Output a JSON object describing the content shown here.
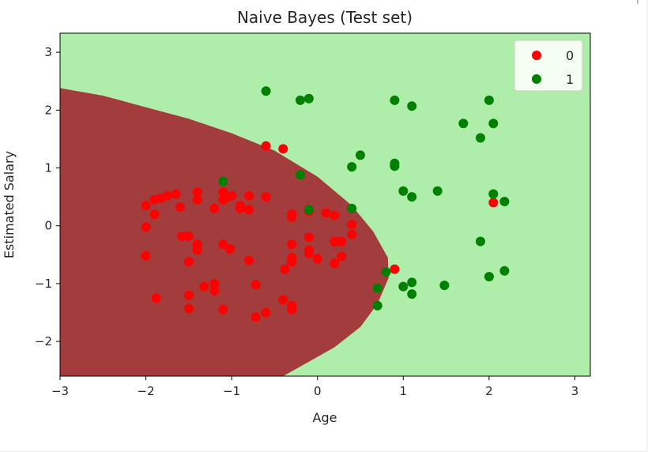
{
  "chart_data": {
    "type": "scatter",
    "title": "Naive Bayes (Test set)",
    "xlabel": "Age",
    "ylabel": "Estimated Salary",
    "xlim": [
      -3,
      3.18
    ],
    "ylim": [
      -2.6,
      3.33
    ],
    "x_ticks": [
      -3,
      -2,
      -1,
      0,
      1,
      2,
      3
    ],
    "y_ticks": [
      -2,
      -1,
      0,
      1,
      2,
      3
    ],
    "x_tick_labels": [
      "−3",
      "−2",
      "−1",
      "0",
      "1",
      "2",
      "3"
    ],
    "y_tick_labels": [
      "−2",
      "−1",
      "0",
      "1",
      "2",
      "3"
    ],
    "grid": false,
    "legend_position": "top-right",
    "background_regions": {
      "class_0_color": "#a33d3d",
      "class_1_color": "#aeeeaa",
      "class_0_region_boundary": [
        [
          -3,
          2.38
        ],
        [
          -2.5,
          2.25
        ],
        [
          -2,
          2.05
        ],
        [
          -1.5,
          1.85
        ],
        [
          -1,
          1.6
        ],
        [
          -0.5,
          1.3
        ],
        [
          0,
          0.85
        ],
        [
          0.4,
          0.35
        ],
        [
          0.65,
          -0.1
        ],
        [
          0.82,
          -0.55
        ],
        [
          0.83,
          -0.9
        ],
        [
          0.7,
          -1.35
        ],
        [
          0.5,
          -1.75
        ],
        [
          0.2,
          -2.1
        ],
        [
          -0.1,
          -2.35
        ],
        [
          -0.4,
          -2.6
        ]
      ]
    },
    "series": [
      {
        "name": "0",
        "color": "#ff0000",
        "points": [
          [
            -2.0,
            0.35
          ],
          [
            -1.9,
            0.45
          ],
          [
            -1.82,
            0.48
          ],
          [
            -1.75,
            0.52
          ],
          [
            -1.65,
            0.55
          ],
          [
            -1.9,
            0.2
          ],
          [
            -2.0,
            -0.02
          ],
          [
            -2.0,
            -0.52
          ],
          [
            -1.88,
            -1.25
          ],
          [
            -1.6,
            0.32
          ],
          [
            -1.58,
            -0.18
          ],
          [
            -1.5,
            -0.18
          ],
          [
            -1.5,
            -0.62
          ],
          [
            -1.4,
            0.58
          ],
          [
            -1.4,
            0.45
          ],
          [
            -1.4,
            -0.32
          ],
          [
            -1.4,
            -0.42
          ],
          [
            -1.5,
            -1.2
          ],
          [
            -1.5,
            -1.43
          ],
          [
            -1.32,
            -1.05
          ],
          [
            -1.2,
            -1.0
          ],
          [
            -1.2,
            -1.12
          ],
          [
            -1.2,
            0.3
          ],
          [
            -1.1,
            0.58
          ],
          [
            -1.1,
            0.45
          ],
          [
            -1.05,
            0.5
          ],
          [
            -1.0,
            0.52
          ],
          [
            -1.1,
            -0.32
          ],
          [
            -1.02,
            -0.4
          ],
          [
            -1.1,
            -1.45
          ],
          [
            -0.9,
            0.35
          ],
          [
            -0.9,
            0.3
          ],
          [
            -0.8,
            0.52
          ],
          [
            -0.8,
            0.28
          ],
          [
            -0.8,
            -0.6
          ],
          [
            -0.72,
            -1.02
          ],
          [
            -0.72,
            -1.58
          ],
          [
            -0.6,
            -1.5
          ],
          [
            -0.6,
            1.38
          ],
          [
            -0.4,
            1.33
          ],
          [
            -0.6,
            0.5
          ],
          [
            -0.3,
            0.2
          ],
          [
            -0.3,
            0.15
          ],
          [
            -0.3,
            -0.32
          ],
          [
            -0.3,
            -0.55
          ],
          [
            -0.3,
            -0.62
          ],
          [
            -0.38,
            -0.75
          ],
          [
            -0.4,
            -1.28
          ],
          [
            -0.3,
            -1.38
          ],
          [
            -0.3,
            -1.45
          ],
          [
            -0.1,
            0.28
          ],
          [
            -0.1,
            0.25
          ],
          [
            -0.1,
            -0.2
          ],
          [
            -0.1,
            -0.42
          ],
          [
            -0.1,
            -0.48
          ],
          [
            0.0,
            -0.57
          ],
          [
            0.1,
            0.22
          ],
          [
            0.2,
            0.18
          ],
          [
            0.2,
            -0.27
          ],
          [
            0.2,
            -0.65
          ],
          [
            0.28,
            -0.27
          ],
          [
            0.28,
            -0.53
          ],
          [
            0.4,
            0.02
          ],
          [
            0.4,
            -0.15
          ],
          [
            0.9,
            -0.75
          ],
          [
            2.05,
            0.4
          ]
        ]
      },
      {
        "name": "1",
        "color": "#008000",
        "points": [
          [
            -0.6,
            2.33
          ],
          [
            -0.2,
            2.17
          ],
          [
            -0.1,
            2.2
          ],
          [
            -0.2,
            0.88
          ],
          [
            -1.1,
            0.77
          ],
          [
            -0.1,
            0.28
          ],
          [
            0.4,
            0.3
          ],
          [
            0.4,
            1.02
          ],
          [
            0.5,
            1.22
          ],
          [
            0.9,
            2.17
          ],
          [
            1.1,
            2.07
          ],
          [
            0.9,
            1.08
          ],
          [
            0.9,
            1.03
          ],
          [
            1.0,
            0.6
          ],
          [
            1.1,
            0.5
          ],
          [
            1.4,
            0.6
          ],
          [
            1.7,
            1.77
          ],
          [
            1.9,
            1.52
          ],
          [
            2.0,
            2.17
          ],
          [
            2.05,
            1.77
          ],
          [
            2.05,
            0.55
          ],
          [
            2.18,
            0.42
          ],
          [
            1.9,
            -0.27
          ],
          [
            2.0,
            -0.88
          ],
          [
            2.18,
            -0.78
          ],
          [
            0.8,
            -0.8
          ],
          [
            0.7,
            -1.08
          ],
          [
            0.7,
            -1.38
          ],
          [
            1.0,
            -1.05
          ],
          [
            1.1,
            -0.98
          ],
          [
            1.1,
            -1.18
          ],
          [
            1.48,
            -1.03
          ]
        ]
      }
    ]
  }
}
